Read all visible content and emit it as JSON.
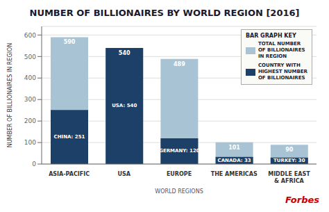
{
  "chart_data": {
    "type": "bar",
    "title": "NUMBER OF BILLIONAIRES BY WORLD REGION [2016]",
    "x_label": "WORLD REGIONS",
    "y_label": "NUMBER OF BILLIONAIRES IN REGION",
    "categories": [
      "ASIA-PACIFIC",
      "USA",
      "EUROPE",
      "THE AMERICAS",
      "MIDDLE EAST\n& AFRICA"
    ],
    "series": [
      {
        "name": "TOTAL NUMBER\nOF BILLIONAIRES\nIN REGION",
        "color": "#a8c4d4",
        "values": [
          590,
          540,
          489,
          101,
          90
        ]
      },
      {
        "name": "COUNTRY WITH\nHIGHEST NUMBER\nOF BILLIONAIRES",
        "color": "#1d4068",
        "values": [
          251,
          540,
          120,
          33,
          30
        ],
        "value_labels": [
          "CHINA: 251",
          "USA: 540",
          "GERMANY: 120",
          "CANADA: 33",
          "TURKEY: 30"
        ]
      }
    ],
    "stacked": false,
    "data_labels": true,
    "ylim": [
      0,
      640
    ],
    "yticks": [
      0,
      100,
      200,
      300,
      400,
      500,
      600
    ],
    "grid": true,
    "legend": "upper right",
    "legend_title": "BAR GRAPH KEY",
    "annotations": [
      {
        "text": "Forbes",
        "color": "#cc0000"
      }
    ]
  }
}
